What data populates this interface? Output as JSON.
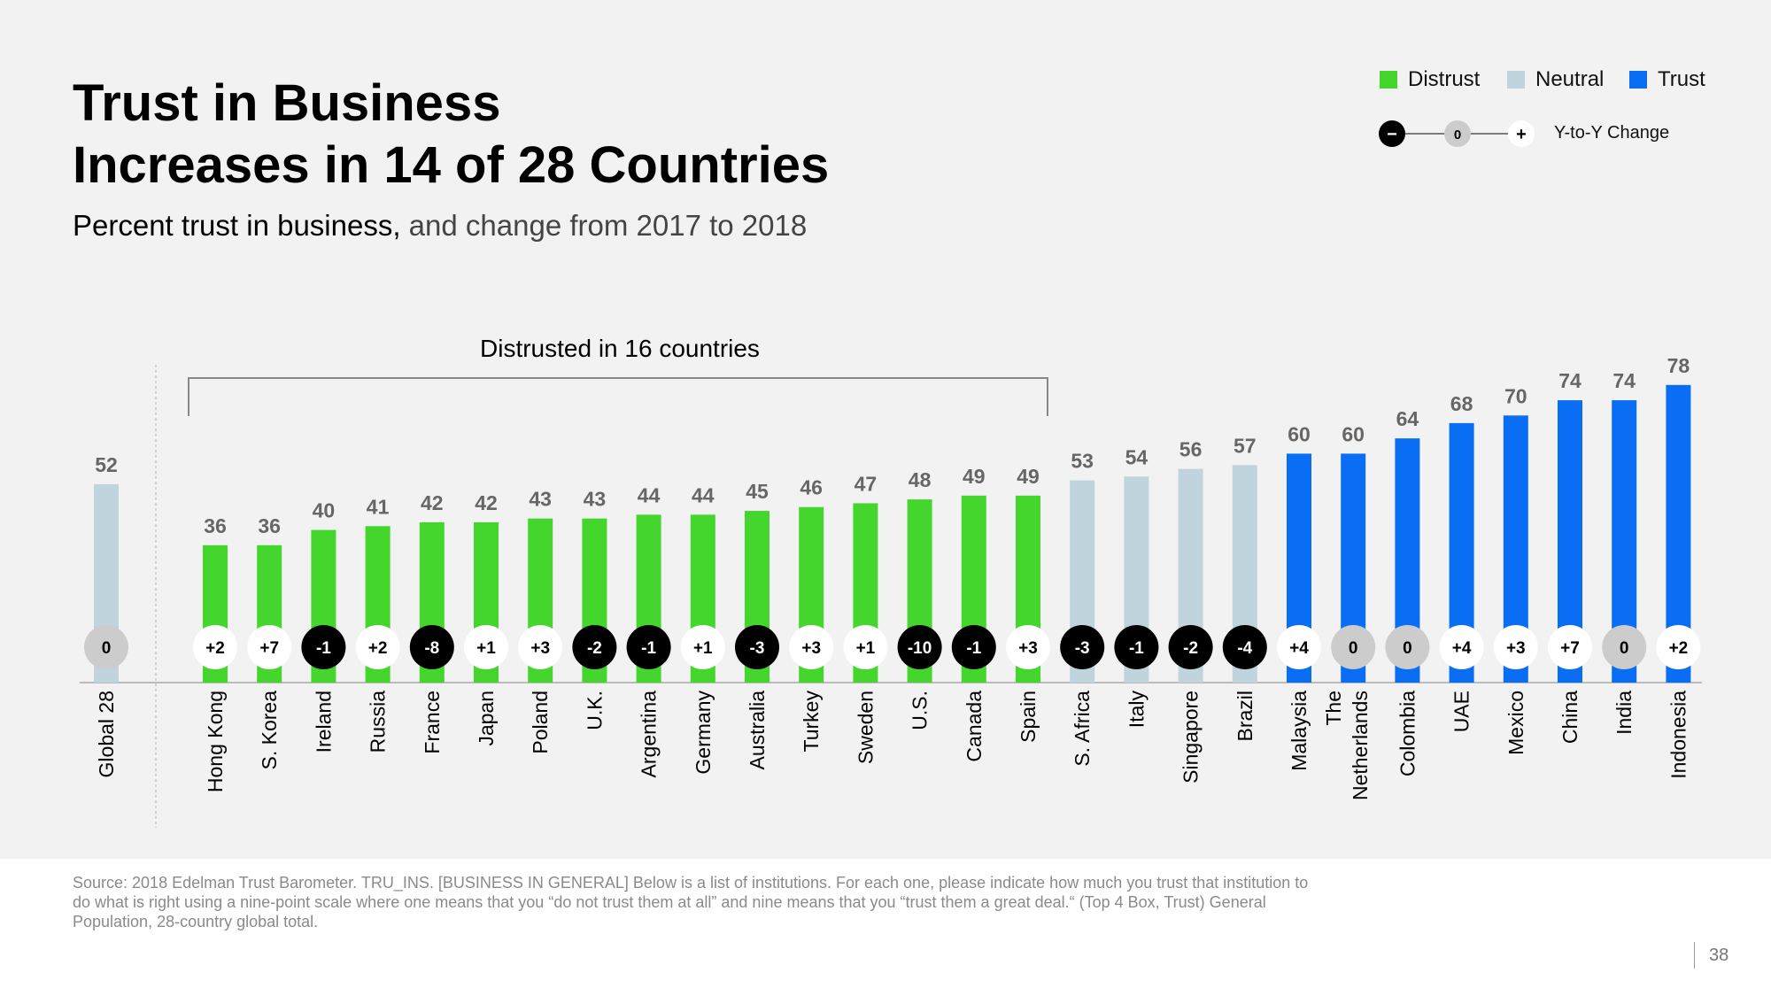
{
  "title_lines": [
    "Trust in Business",
    "Increases in 14 of 28 Countries"
  ],
  "subtitle_main": "Percent trust in business,",
  "subtitle_rest": " and change from 2017 to 2018",
  "legend": {
    "distrust": "Distrust",
    "neutral": "Neutral",
    "trust": "Trust",
    "minus_symbol": "−",
    "zero_symbol": "0",
    "plus_symbol": "+",
    "yoy_label": "Y-to-Y Change"
  },
  "colors": {
    "distrust": "#44d62c",
    "neutral": "#c0d4dd",
    "trust": "#0a6ef5",
    "negative_change": "#000000",
    "zero_change": "#cccccc",
    "positive_change": "#ffffff"
  },
  "bracket_label": "Distrusted in 16 countries",
  "chart_data": {
    "type": "bar",
    "title": "Trust in Business Increases in 14 of 28 Countries",
    "ylim": [
      0,
      100
    ],
    "categories": [
      "Global 28",
      "Hong Kong",
      "S. Korea",
      "Ireland",
      "Russia",
      "France",
      "Japan",
      "Poland",
      "U.K.",
      "Argentina",
      "Germany",
      "Australia",
      "Turkey",
      "Sweden",
      "U.S.",
      "Canada",
      "Spain",
      "S. Africa",
      "Italy",
      "Singapore",
      "Brazil",
      "Malaysia",
      "The Netherlands",
      "Colombia",
      "UAE",
      "Mexico",
      "China",
      "India",
      "Indonesia"
    ],
    "values": [
      52,
      36,
      36,
      40,
      41,
      42,
      42,
      43,
      43,
      44,
      44,
      45,
      46,
      47,
      48,
      49,
      49,
      53,
      54,
      56,
      57,
      60,
      60,
      64,
      68,
      70,
      74,
      74,
      78
    ],
    "changes": [
      "0",
      "+2",
      "+7",
      "-1",
      "+2",
      "-8",
      "+1",
      "+3",
      "-2",
      "-1",
      "+1",
      "-3",
      "+3",
      "+1",
      "-10",
      "-1",
      "+3",
      "-3",
      "-1",
      "-2",
      "-4",
      "+4",
      "0",
      "0",
      "+4",
      "+3",
      "+7",
      "0",
      "+2"
    ],
    "groups": [
      "neutral",
      "distrust",
      "distrust",
      "distrust",
      "distrust",
      "distrust",
      "distrust",
      "distrust",
      "distrust",
      "distrust",
      "distrust",
      "distrust",
      "distrust",
      "distrust",
      "distrust",
      "distrust",
      "distrust",
      "neutral",
      "neutral",
      "neutral",
      "neutral",
      "trust",
      "trust",
      "trust",
      "trust",
      "trust",
      "trust",
      "trust",
      "trust"
    ]
  },
  "source": "Source: 2018 Edelman Trust Barometer. TRU_INS. [BUSINESS IN GENERAL] Below is a list of institutions. For each one, please indicate how much you trust that institution to do what is right using a nine-point scale where one means that you “do not trust them at all” and nine means that you “trust them a great deal.“ (Top 4 Box, Trust) General Population, 28-country global total.",
  "page_number": "38"
}
